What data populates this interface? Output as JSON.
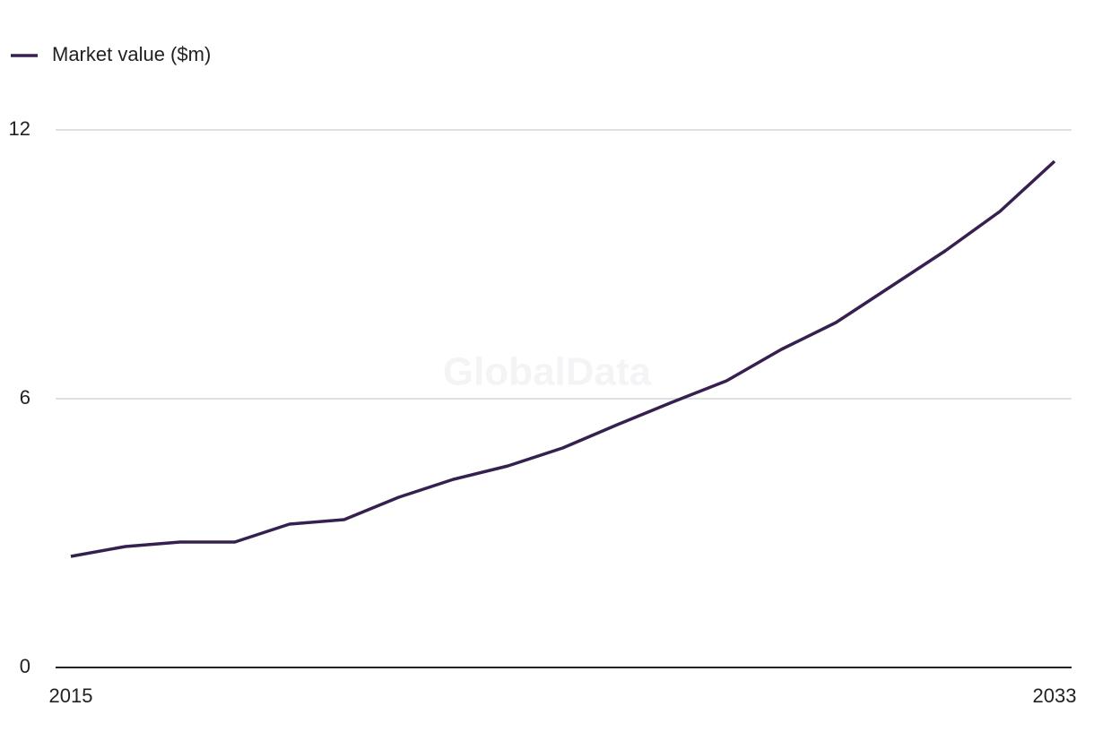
{
  "chart_data": {
    "type": "line",
    "watermark": "GlobalData",
    "x": [
      2015,
      2016,
      2017,
      2018,
      2019,
      2020,
      2021,
      2022,
      2023,
      2024,
      2025,
      2026,
      2027,
      2028,
      2029,
      2030,
      2031,
      2032,
      2033
    ],
    "series": [
      {
        "name": "Market value ($m)",
        "color": "#35204f",
        "values": [
          2.48,
          2.7,
          2.8,
          2.8,
          3.2,
          3.3,
          3.8,
          4.2,
          4.5,
          4.9,
          5.42,
          5.92,
          6.4,
          7.1,
          7.7,
          8.5,
          9.3,
          10.18,
          11.3
        ]
      }
    ],
    "xlim": [
      2015,
      2033
    ],
    "xticks": [
      2015,
      2033
    ],
    "ylim": [
      0,
      12
    ],
    "yticks": [
      0,
      6,
      12
    ],
    "grid": true,
    "legend": "top-left"
  }
}
